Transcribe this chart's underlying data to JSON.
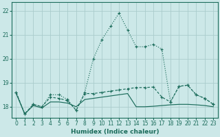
{
  "xlabel": "Humidex (Indice chaleur)",
  "bg_color": "#cce8e8",
  "grid_color": "#aacccc",
  "line_color": "#1a6b5a",
  "x_ticks": [
    0,
    1,
    2,
    3,
    4,
    5,
    6,
    7,
    8,
    9,
    10,
    11,
    12,
    13,
    14,
    15,
    16,
    17,
    18,
    19,
    20,
    21,
    22,
    23
  ],
  "y_ticks": [
    18,
    19,
    20,
    21,
    22
  ],
  "ylim": [
    17.55,
    22.35
  ],
  "xlim": [
    -0.5,
    23.5
  ],
  "s1_x": [
    0,
    1,
    2,
    3,
    4,
    5,
    6,
    7,
    8,
    9,
    10,
    11,
    12,
    13,
    14,
    15,
    16,
    17,
    18,
    19,
    20,
    21,
    22,
    23
  ],
  "s1_y": [
    18.6,
    17.7,
    18.1,
    18.0,
    18.5,
    18.5,
    18.3,
    17.85,
    18.6,
    20.0,
    20.8,
    21.35,
    21.9,
    21.2,
    20.5,
    20.5,
    20.6,
    20.4,
    18.2,
    18.85,
    18.9,
    18.5,
    18.35,
    18.1
  ],
  "s2_x": [
    0,
    1,
    2,
    3,
    4,
    5,
    6,
    7,
    8,
    9,
    10,
    11,
    12,
    13,
    14,
    15,
    16,
    17,
    18,
    19,
    20,
    21,
    22,
    23
  ],
  "s2_y": [
    18.6,
    17.7,
    18.1,
    18.0,
    18.4,
    18.35,
    18.25,
    17.85,
    18.55,
    18.55,
    18.6,
    18.65,
    18.7,
    18.75,
    18.8,
    18.8,
    18.82,
    18.4,
    18.2,
    18.85,
    18.9,
    18.5,
    18.35,
    18.1
  ],
  "s3_x": [
    0,
    1,
    2,
    3,
    4,
    5,
    6,
    7,
    8,
    9,
    10,
    11,
    12,
    13,
    14,
    15,
    16,
    17,
    18,
    19,
    20,
    21,
    22,
    23
  ],
  "s3_y": [
    18.55,
    17.7,
    18.05,
    17.95,
    18.2,
    18.2,
    18.15,
    18.0,
    18.3,
    18.35,
    18.4,
    18.45,
    18.5,
    18.55,
    18.0,
    18.0,
    18.02,
    18.05,
    18.08,
    18.1,
    18.1,
    18.08,
    18.05,
    18.0
  ]
}
